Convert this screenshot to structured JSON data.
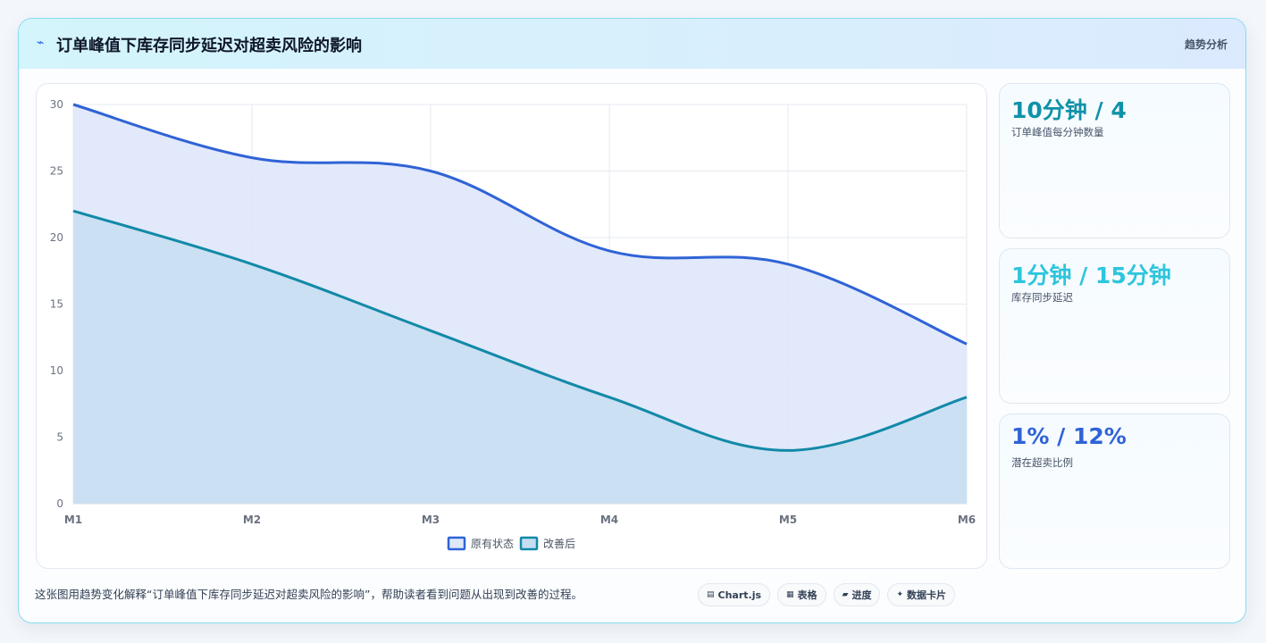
{
  "header": {
    "icon": "⌁",
    "title": "订单峰值下库存同步延迟对超卖风险的影响",
    "tag": "趋势分析"
  },
  "chart_data": {
    "type": "area",
    "categories": [
      "M1",
      "M2",
      "M3",
      "M4",
      "M5",
      "M6"
    ],
    "series": [
      {
        "name": "原有状态",
        "values": [
          30,
          26,
          25,
          19,
          18,
          12
        ],
        "color": "#2f63d6",
        "fill": "#dfe8fa"
      },
      {
        "name": "改善后",
        "values": [
          22,
          18,
          13,
          8,
          4,
          8
        ],
        "color": "#1289a7",
        "fill": "#c6ddf1"
      }
    ],
    "ylim": [
      0,
      30
    ],
    "yticks": [
      0,
      5,
      10,
      15,
      20,
      25,
      30
    ],
    "grid": true,
    "legend": "bottom"
  },
  "stats": [
    {
      "value": "10分钟 / 4",
      "label": "订单峰值每分钟数量",
      "color": "#0f92a8"
    },
    {
      "value": "1分钟 / 15分钟",
      "label": "库存同步延迟",
      "color": "#2ec5dd"
    },
    {
      "value": "1% / 12%",
      "label": "潜在超卖比例",
      "color": "#2f63d6"
    }
  ],
  "footer": {
    "text": "这张图用趋势变化解释“订单峰值下库存同步延迟对超卖风险的影响”，帮助读者看到问题从出现到改善的过程。",
    "chips": [
      {
        "icon": "▤",
        "label": "Chart.js"
      },
      {
        "icon": "▦",
        "label": "表格"
      },
      {
        "icon": "▰",
        "label": "进度"
      },
      {
        "icon": "✦",
        "label": "数据卡片"
      }
    ]
  }
}
